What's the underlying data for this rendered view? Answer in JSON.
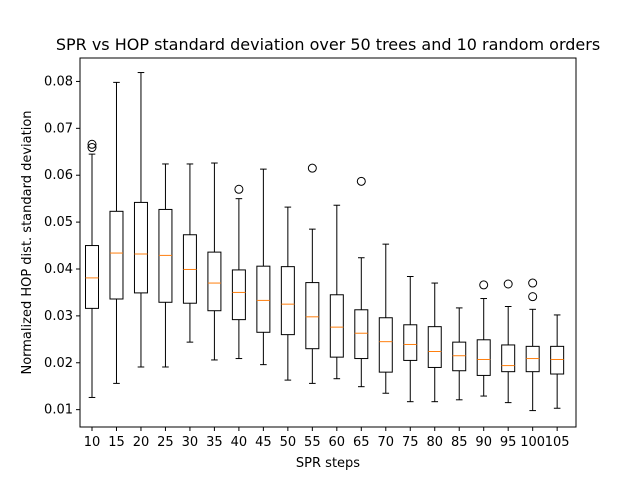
{
  "chart_data": {
    "type": "box",
    "title": "SPR vs HOP standard deviation over 50 trees and 10 random orders",
    "xlabel": "SPR steps",
    "ylabel": "Normalized HOP dist. standard deviation",
    "ylim": [
      0.0063,
      0.085
    ],
    "yticks": [
      "0.01",
      "0.02",
      "0.03",
      "0.04",
      "0.05",
      "0.06",
      "0.07",
      "0.08"
    ],
    "grid": false,
    "colors": {
      "box": "#000000",
      "median": "#ff7f0e",
      "outlier": "#000000"
    },
    "categories": [
      "10",
      "15",
      "20",
      "25",
      "30",
      "35",
      "40",
      "45",
      "50",
      "55",
      "60",
      "65",
      "70",
      "75",
      "80",
      "85",
      "90",
      "95",
      "100",
      "105"
    ],
    "boxes": [
      {
        "whisker_low": 0.0126,
        "q1": 0.0316,
        "median": 0.0381,
        "q3": 0.045,
        "whisker_high": 0.0645,
        "outliers": [
          0.0659,
          0.0666
        ]
      },
      {
        "whisker_low": 0.0156,
        "q1": 0.0336,
        "median": 0.0434,
        "q3": 0.0523,
        "whisker_high": 0.0798,
        "outliers": []
      },
      {
        "whisker_low": 0.0191,
        "q1": 0.0349,
        "median": 0.0432,
        "q3": 0.0542,
        "whisker_high": 0.0819,
        "outliers": []
      },
      {
        "whisker_low": 0.0191,
        "q1": 0.0329,
        "median": 0.0429,
        "q3": 0.0527,
        "whisker_high": 0.0624,
        "outliers": []
      },
      {
        "whisker_low": 0.0244,
        "q1": 0.0327,
        "median": 0.0399,
        "q3": 0.0473,
        "whisker_high": 0.0624,
        "outliers": []
      },
      {
        "whisker_low": 0.0206,
        "q1": 0.0311,
        "median": 0.037,
        "q3": 0.0436,
        "whisker_high": 0.0626,
        "outliers": []
      },
      {
        "whisker_low": 0.0209,
        "q1": 0.0292,
        "median": 0.035,
        "q3": 0.0398,
        "whisker_high": 0.055,
        "outliers": [
          0.057
        ]
      },
      {
        "whisker_low": 0.0196,
        "q1": 0.0265,
        "median": 0.0333,
        "q3": 0.0406,
        "whisker_high": 0.0613,
        "outliers": []
      },
      {
        "whisker_low": 0.0163,
        "q1": 0.026,
        "median": 0.0325,
        "q3": 0.0405,
        "whisker_high": 0.0532,
        "outliers": []
      },
      {
        "whisker_low": 0.0156,
        "q1": 0.023,
        "median": 0.0298,
        "q3": 0.0371,
        "whisker_high": 0.0485,
        "outliers": [
          0.0615
        ]
      },
      {
        "whisker_low": 0.0166,
        "q1": 0.0212,
        "median": 0.0276,
        "q3": 0.0345,
        "whisker_high": 0.0536,
        "outliers": []
      },
      {
        "whisker_low": 0.0149,
        "q1": 0.0209,
        "median": 0.0263,
        "q3": 0.0313,
        "whisker_high": 0.0424,
        "outliers": [
          0.0587
        ]
      },
      {
        "whisker_low": 0.0135,
        "q1": 0.018,
        "median": 0.0245,
        "q3": 0.0296,
        "whisker_high": 0.0453,
        "outliers": []
      },
      {
        "whisker_low": 0.0117,
        "q1": 0.0205,
        "median": 0.0239,
        "q3": 0.0281,
        "whisker_high": 0.0384,
        "outliers": []
      },
      {
        "whisker_low": 0.0117,
        "q1": 0.019,
        "median": 0.0224,
        "q3": 0.0277,
        "whisker_high": 0.037,
        "outliers": []
      },
      {
        "whisker_low": 0.0121,
        "q1": 0.0183,
        "median": 0.0215,
        "q3": 0.0244,
        "whisker_high": 0.0317,
        "outliers": []
      },
      {
        "whisker_low": 0.0129,
        "q1": 0.0173,
        "median": 0.0207,
        "q3": 0.0249,
        "whisker_high": 0.0337,
        "outliers": [
          0.0366
        ]
      },
      {
        "whisker_low": 0.0115,
        "q1": 0.0181,
        "median": 0.0194,
        "q3": 0.0238,
        "whisker_high": 0.032,
        "outliers": [
          0.0368
        ]
      },
      {
        "whisker_low": 0.0098,
        "q1": 0.0181,
        "median": 0.0209,
        "q3": 0.0235,
        "whisker_high": 0.0314,
        "outliers": [
          0.0341,
          0.037
        ]
      },
      {
        "whisker_low": 0.0103,
        "q1": 0.0176,
        "median": 0.0207,
        "q3": 0.0235,
        "whisker_high": 0.0302,
        "outliers": []
      }
    ]
  }
}
